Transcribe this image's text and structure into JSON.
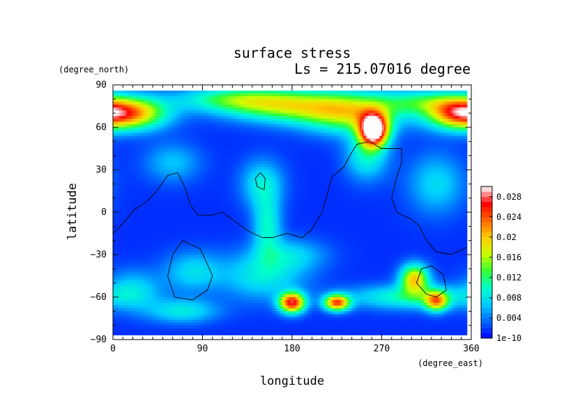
{
  "chart_data": {
    "type": "heatmap",
    "title": "surface stress",
    "subtitle": "Ls = 215.07016 degree",
    "xlabel": "longitude",
    "ylabel": "latitude",
    "x_units": "(degree_east)",
    "y_units": "(degree_north)",
    "xlim": [
      0,
      360
    ],
    "ylim": [
      -90,
      90
    ],
    "x_ticks": [
      0,
      90,
      180,
      270,
      360
    ],
    "y_ticks": [
      -90,
      -60,
      -30,
      0,
      30,
      60,
      90
    ],
    "x_tick_labels": [
      "0",
      "90",
      "180",
      "270",
      "360"
    ],
    "y_tick_labels": [
      "−90",
      "−60",
      "−30",
      "0",
      "30",
      "60",
      "90"
    ],
    "field_data_extent": {
      "lon": [
        0,
        356
      ],
      "lat": [
        -87,
        86
      ]
    },
    "colorbar": {
      "min": 1e-10,
      "max": 0.03,
      "tick_values": [
        0,
        0.004,
        0.008,
        0.012,
        0.016,
        0.02,
        0.024,
        0.028
      ],
      "tick_labels": [
        "1e-10",
        "0.004",
        "0.008",
        "0.012",
        "0.016",
        "0.02",
        "0.024",
        "0.028"
      ]
    },
    "colormap": [
      "#0000ff",
      "#0066ff",
      "#00ccff",
      "#00ffcc",
      "#33ff33",
      "#ccff00",
      "#ffcc00",
      "#ff6600",
      "#ff0000",
      "#ffffff"
    ],
    "background_level": 0.0015,
    "hotspots": [
      {
        "lon": 262,
        "lat": 58,
        "value": 0.031,
        "rx": 10,
        "ry": 8
      },
      {
        "lon": 240,
        "lat": 70,
        "value": 0.014,
        "rx": 35,
        "ry": 10
      },
      {
        "lon": 175,
        "lat": 75,
        "value": 0.013,
        "rx": 45,
        "ry": 8
      },
      {
        "lon": 120,
        "lat": 80,
        "value": 0.009,
        "rx": 40,
        "ry": 6
      },
      {
        "lon": 20,
        "lat": 70,
        "value": 0.018,
        "rx": 25,
        "ry": 8
      },
      {
        "lon": 345,
        "lat": 70,
        "value": 0.019,
        "rx": 22,
        "ry": 8
      },
      {
        "lon": 310,
        "lat": 78,
        "value": 0.008,
        "rx": 30,
        "ry": 6
      },
      {
        "lon": 255,
        "lat": 40,
        "value": 0.008,
        "rx": 15,
        "ry": 12
      },
      {
        "lon": 150,
        "lat": 20,
        "value": 0.007,
        "rx": 15,
        "ry": 12
      },
      {
        "lon": 155,
        "lat": -10,
        "value": 0.008,
        "rx": 10,
        "ry": 15
      },
      {
        "lon": 60,
        "lat": 35,
        "value": 0.005,
        "rx": 20,
        "ry": 10
      },
      {
        "lon": 325,
        "lat": 20,
        "value": 0.006,
        "rx": 20,
        "ry": 15
      },
      {
        "lon": 180,
        "lat": -64,
        "value": 0.025,
        "rx": 9,
        "ry": 5
      },
      {
        "lon": 225,
        "lat": -64,
        "value": 0.022,
        "rx": 9,
        "ry": 4
      },
      {
        "lon": 303,
        "lat": -47,
        "value": 0.018,
        "rx": 10,
        "ry": 7
      },
      {
        "lon": 325,
        "lat": -63,
        "value": 0.016,
        "rx": 8,
        "ry": 5
      },
      {
        "lon": 300,
        "lat": -60,
        "value": 0.009,
        "rx": 45,
        "ry": 6
      },
      {
        "lon": 80,
        "lat": -42,
        "value": 0.006,
        "rx": 20,
        "ry": 10
      },
      {
        "lon": 150,
        "lat": -45,
        "value": 0.007,
        "rx": 30,
        "ry": 12
      },
      {
        "lon": 70,
        "lat": -70,
        "value": 0.007,
        "rx": 25,
        "ry": 6
      },
      {
        "lon": 20,
        "lat": -55,
        "value": 0.006,
        "rx": 20,
        "ry": 10
      },
      {
        "lon": 180,
        "lat": -30,
        "value": 0.005,
        "rx": 25,
        "ry": 8
      }
    ],
    "topography_contours": [
      [
        [
          0,
          -15
        ],
        [
          10,
          -8
        ],
        [
          22,
          2
        ],
        [
          35,
          8
        ],
        [
          45,
          16
        ],
        [
          55,
          26
        ],
        [
          65,
          28
        ],
        [
          72,
          18
        ],
        [
          78,
          5
        ],
        [
          85,
          -2
        ],
        [
          100,
          -2
        ],
        [
          110,
          0
        ],
        [
          120,
          -5
        ],
        [
          135,
          -13
        ],
        [
          150,
          -18
        ],
        [
          160,
          -18
        ],
        [
          175,
          -15
        ],
        [
          190,
          -18
        ],
        [
          200,
          -12
        ],
        [
          210,
          0
        ],
        [
          215,
          12
        ],
        [
          220,
          25
        ],
        [
          232,
          32
        ],
        [
          238,
          40
        ],
        [
          245,
          48
        ],
        [
          258,
          50
        ],
        [
          270,
          45
        ],
        [
          290,
          45
        ],
        [
          290,
          35
        ],
        [
          285,
          25
        ],
        [
          280,
          10
        ],
        [
          285,
          0
        ],
        [
          300,
          -5
        ],
        [
          308,
          -10
        ],
        [
          315,
          -20
        ],
        [
          325,
          -28
        ],
        [
          340,
          -30
        ],
        [
          355,
          -25
        ]
      ],
      [
        [
          70,
          -20
        ],
        [
          88,
          -26
        ],
        [
          100,
          -45
        ],
        [
          95,
          -55
        ],
        [
          80,
          -62
        ],
        [
          62,
          -60
        ],
        [
          55,
          -45
        ],
        [
          60,
          -30
        ],
        [
          70,
          -20
        ]
      ],
      [
        [
          320,
          -38
        ],
        [
          332,
          -44
        ],
        [
          335,
          -55
        ],
        [
          325,
          -60
        ],
        [
          315,
          -58
        ],
        [
          305,
          -50
        ],
        [
          310,
          -40
        ],
        [
          320,
          -38
        ]
      ],
      [
        [
          148,
          28
        ],
        [
          153,
          24
        ],
        [
          152,
          16
        ],
        [
          145,
          18
        ],
        [
          143,
          24
        ],
        [
          148,
          28
        ]
      ]
    ]
  }
}
